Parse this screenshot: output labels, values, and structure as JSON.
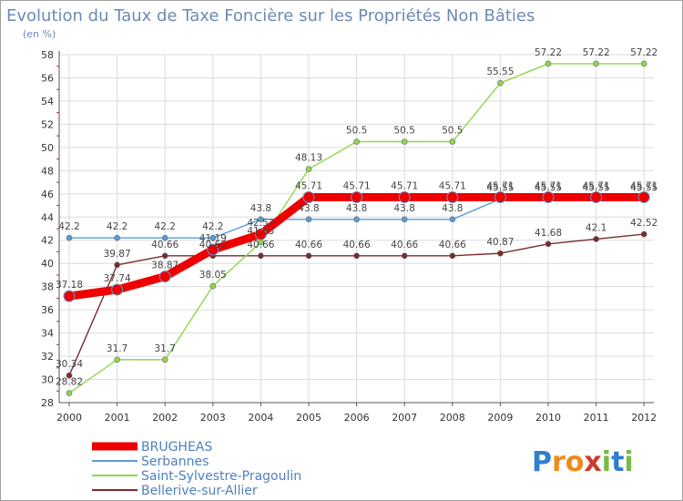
{
  "title": "Evolution du Taux de Taxe Foncière sur les Propriétés Non Bâties",
  "unit_label": "(en %)",
  "logo": {
    "letters": [
      "P",
      "r",
      "o",
      "x",
      "i",
      "t",
      "i"
    ],
    "colors": [
      "#2f7fd0",
      "#f08a1c",
      "#f08a1c",
      "#d13a2a",
      "#7db84a",
      "#2f7fd0",
      "#7db84a"
    ]
  },
  "colors": {
    "grid": "#dcdcdc",
    "axis": "#555555",
    "redtick": "#d02020"
  },
  "chart_data": {
    "type": "line",
    "title": "Evolution du Taux de Taxe Foncière sur les Propriétés Non Bâties",
    "ylabel": "(en %)",
    "x": [
      "2000",
      "2001",
      "2002",
      "2003",
      "2004",
      "2005",
      "2006",
      "2007",
      "2008",
      "2009",
      "2010",
      "2011",
      "2012"
    ],
    "ylim": [
      28,
      58
    ],
    "yticks": [
      28,
      30,
      32,
      34,
      36,
      38,
      40,
      42,
      44,
      46,
      48,
      50,
      52,
      54,
      56,
      58
    ],
    "series": [
      {
        "name": "Bellerive-sur-Allier",
        "color": "#7a2a2a",
        "values": [
          30.34,
          39.87,
          40.66,
          40.66,
          40.66,
          40.66,
          40.66,
          40.66,
          40.66,
          40.87,
          41.68,
          42.1,
          42.52
        ],
        "labels": [
          "30.34",
          "39.87",
          "40.66",
          "40.66",
          "40.66",
          "40.66",
          "40.66",
          "40.66",
          "40.66",
          "40.87",
          "41.68",
          "42.1",
          "42.52"
        ]
      },
      {
        "name": "Saint-Sylvestre-Pragoulin",
        "color": "#8fd64f",
        "values": [
          28.82,
          31.7,
          31.7,
          38.05,
          41.83,
          48.13,
          50.5,
          50.5,
          50.5,
          55.55,
          57.22,
          57.22,
          57.22
        ],
        "labels": [
          "28.82",
          "31.7",
          "31.7",
          "38.05",
          "41.83",
          "48.13",
          "50.5",
          "50.5",
          "50.5",
          "55.55",
          "57.22",
          "57.22",
          "57.22"
        ]
      },
      {
        "name": "Serbannes",
        "color": "#5a9bd5",
        "values": [
          42.2,
          42.2,
          42.2,
          42.2,
          43.8,
          43.8,
          43.8,
          43.8,
          43.8,
          45.55,
          45.55,
          45.55,
          45.55
        ],
        "labels": [
          "42.2",
          "42.2",
          "42.2",
          "42.2",
          "43.8",
          "43.8",
          "43.8",
          "43.8",
          "43.8",
          "45.55",
          "45.55",
          "45.55",
          "45.55"
        ]
      },
      {
        "name": "BRUGHEAS",
        "color": "#ee0000",
        "values": [
          37.18,
          37.74,
          38.87,
          41.19,
          42.52,
          45.71,
          45.71,
          45.71,
          45.71,
          45.71,
          45.71,
          45.71,
          45.71
        ],
        "labels": [
          "37.18",
          "37.74",
          "38.87",
          "41.19",
          "42.52",
          "45.71",
          "45.71",
          "45.71",
          "45.71",
          "45.71",
          "45.71",
          "45.71",
          "45.71"
        ]
      }
    ],
    "legend": [
      "BRUGHEAS",
      "Serbannes",
      "Saint-Sylvestre-Pragoulin",
      "Bellerive-sur-Allier"
    ],
    "legend_position": "bottom-left",
    "grid": true
  }
}
